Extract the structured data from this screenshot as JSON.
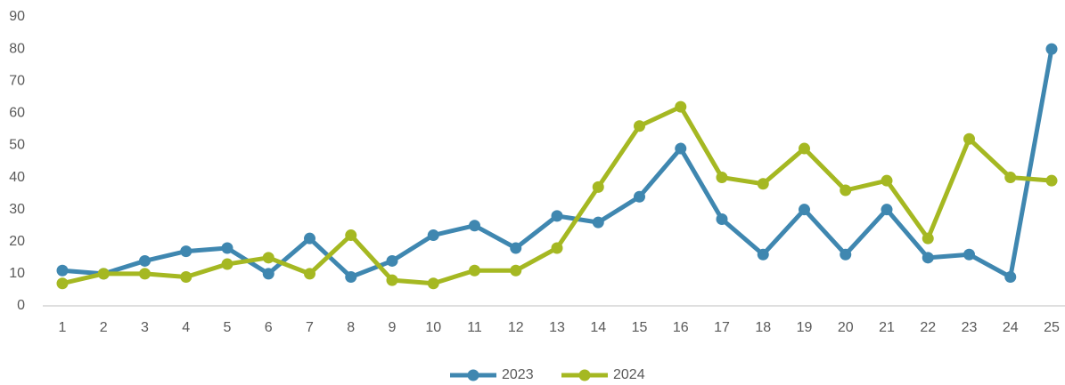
{
  "chart_data": {
    "type": "line",
    "categories": [
      "1",
      "2",
      "3",
      "4",
      "5",
      "6",
      "7",
      "8",
      "9",
      "10",
      "11",
      "12",
      "13",
      "14",
      "15",
      "16",
      "17",
      "18",
      "19",
      "20",
      "21",
      "22",
      "23",
      "24",
      "25"
    ],
    "series": [
      {
        "name": "2023",
        "color": "#3f87b0",
        "values": [
          11,
          10,
          14,
          17,
          18,
          10,
          21,
          9,
          14,
          22,
          25,
          18,
          28,
          26,
          34,
          49,
          27,
          16,
          30,
          16,
          30,
          15,
          16,
          9,
          80
        ]
      },
      {
        "name": "2024",
        "color": "#a5b822",
        "values": [
          7,
          10,
          10,
          9,
          13,
          15,
          10,
          22,
          8,
          7,
          11,
          11,
          18,
          37,
          56,
          62,
          40,
          38,
          49,
          36,
          39,
          21,
          52,
          40,
          39
        ]
      }
    ],
    "ylim": [
      0,
      90
    ],
    "yticks": [
      0,
      10,
      20,
      30,
      40,
      50,
      60,
      70,
      80,
      90
    ],
    "grid": false,
    "legend": "bottom"
  }
}
